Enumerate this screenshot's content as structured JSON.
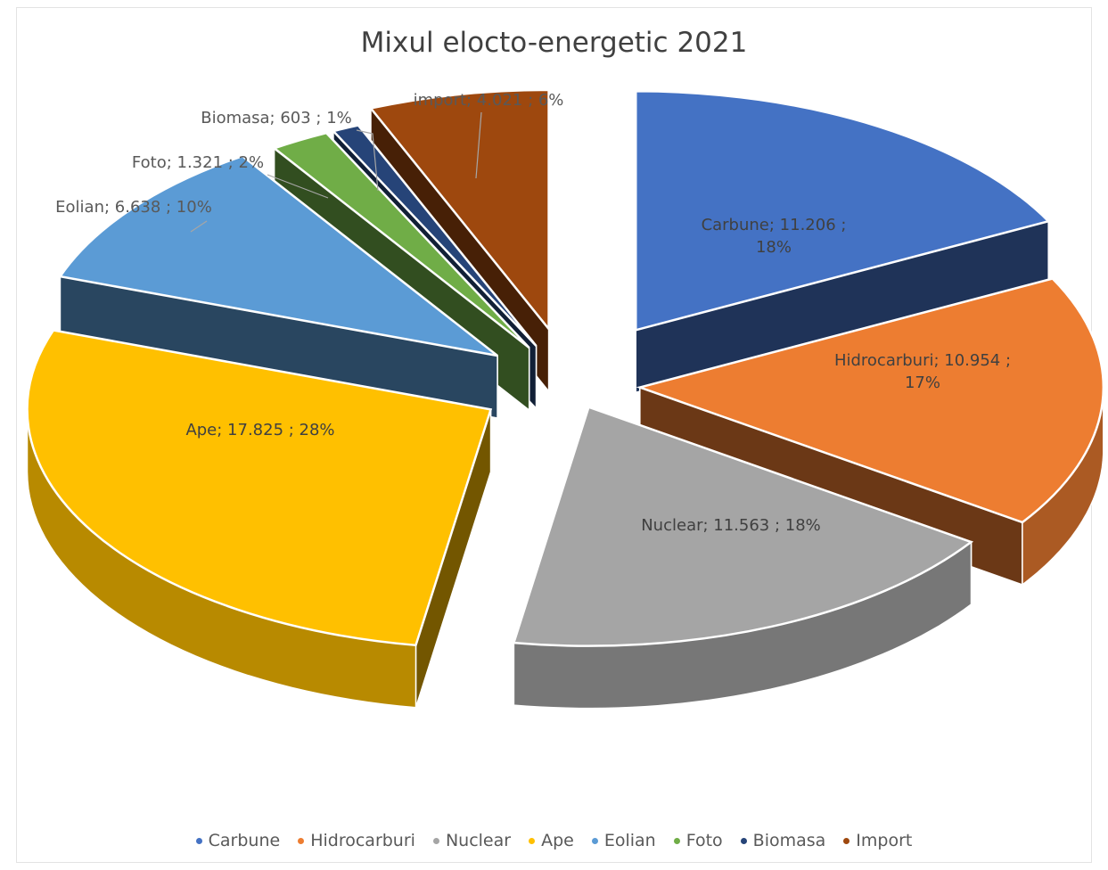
{
  "chart_data": {
    "type": "pie",
    "title": "Mixul elocto-energetic 2021",
    "legend_position": "bottom",
    "style": "3d-exploded",
    "slices": [
      {
        "name": "Carbune",
        "value": 11206,
        "percent": 18,
        "label": "Carbune; 11.206 ; 18%",
        "label_lines": [
          "Carbune; 11.206 ;",
          "18%"
        ],
        "color": "#4472C4"
      },
      {
        "name": "Hidrocarburi",
        "value": 10954,
        "percent": 17,
        "label": "Hidrocarburi; 10.954 ; 17%",
        "label_lines": [
          "Hidrocarburi; 10.954 ;",
          "17%"
        ],
        "color": "#ED7D31"
      },
      {
        "name": "Nuclear",
        "value": 11563,
        "percent": 18,
        "label": "Nuclear; 11.563 ; 18%",
        "label_lines": [
          "Nuclear; 11.563 ; 18%"
        ],
        "color": "#A5A5A5"
      },
      {
        "name": "Ape",
        "value": 17825,
        "percent": 28,
        "label": "Ape; 17.825 ; 28%",
        "label_lines": [
          "Ape; 17.825 ; 28%"
        ],
        "color": "#FFC000"
      },
      {
        "name": "Eolian",
        "value": 6638,
        "percent": 10,
        "label": "Eolian; 6.638 ; 10%",
        "label_lines": [
          "Eolian; 6.638 ; 10%"
        ],
        "color": "#5B9BD5"
      },
      {
        "name": "Foto",
        "value": 1321,
        "percent": 2,
        "label": "Foto; 1.321 ; 2%",
        "label_lines": [
          "Foto; 1.321 ; 2%"
        ],
        "color": "#70AD47"
      },
      {
        "name": "Biomasa",
        "value": 603,
        "percent": 1,
        "label": "Biomasa; 603 ; 1%",
        "label_lines": [
          "Biomasa; 603 ; 1%"
        ],
        "color": "#264478"
      },
      {
        "name": "Import",
        "value": 4021,
        "percent": 6,
        "label": "import; 4.021 ; 6%",
        "label_lines": [
          "import; 4.021 ; 6%"
        ],
        "color": "#9E480E"
      }
    ]
  }
}
